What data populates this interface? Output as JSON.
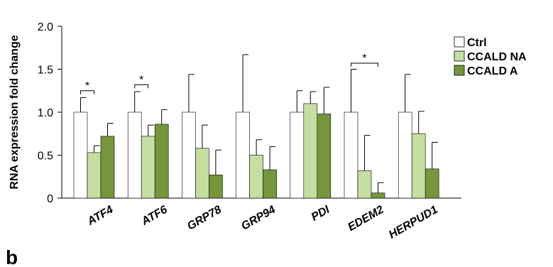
{
  "chart_data": {
    "type": "bar",
    "categories": [
      "ATF4",
      "ATF6",
      "GRP78",
      "GRP94",
      "PDI",
      "EDEM2",
      "HERPUD1"
    ],
    "series": [
      {
        "name": "Ctrl",
        "color": "#ffffff",
        "values": [
          1.0,
          1.0,
          1.0,
          1.0,
          1.0,
          1.0,
          1.0
        ],
        "errors": [
          0.17,
          0.24,
          0.44,
          0.67,
          0.25,
          0.5,
          0.44
        ]
      },
      {
        "name": "CCALD NA",
        "color": "#c6dea2",
        "values": [
          0.53,
          0.72,
          0.58,
          0.5,
          1.1,
          0.32,
          0.75
        ],
        "errors": [
          0.08,
          0.13,
          0.27,
          0.18,
          0.14,
          0.41,
          0.26
        ]
      },
      {
        "name": "CCALD A",
        "color": "#76963d",
        "values": [
          0.72,
          0.86,
          0.27,
          0.33,
          0.98,
          0.06,
          0.34
        ],
        "errors": [
          0.15,
          0.17,
          0.29,
          0.27,
          0.31,
          0.12,
          0.31
        ]
      }
    ],
    "ylabel": "RNA expression fold change",
    "xlabel": "",
    "ylim": [
      0,
      2.0
    ],
    "yticks": [
      "0",
      "0.5",
      "1.0",
      "1.5",
      "2.0"
    ],
    "significance": [
      {
        "category": "ATF4",
        "from_series": 0,
        "to_series": 1,
        "label": "*",
        "y": 1.25
      },
      {
        "category": "ATF6",
        "from_series": 0,
        "to_series": 1,
        "label": "*",
        "y": 1.32
      },
      {
        "category": "EDEM2",
        "from_series": 0,
        "to_series": 2,
        "label": "*",
        "y": 1.57
      }
    ],
    "legend_position": "right",
    "grid": false
  },
  "panel_label": "b"
}
